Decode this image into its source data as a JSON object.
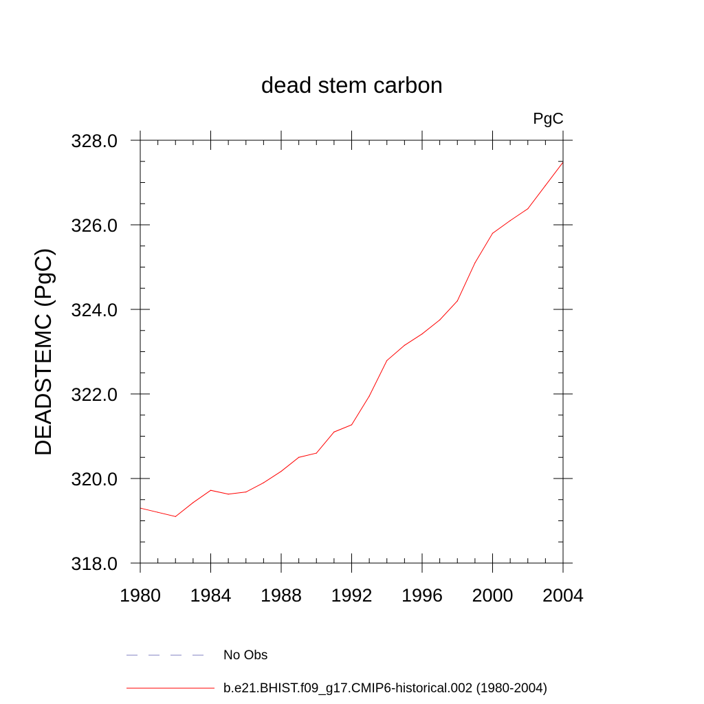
{
  "chart_data": {
    "type": "line",
    "title": "dead stem carbon",
    "units": "PgC",
    "ylabel": "DEADSTEMC  (PgC)",
    "xlabel": "",
    "xlim": [
      1980,
      2004
    ],
    "ylim": [
      318.0,
      328.0
    ],
    "x_ticks": [
      1980,
      1984,
      1988,
      1992,
      1996,
      2000,
      2004
    ],
    "x_tick_labels": [
      "1980",
      "1984",
      "1988",
      "1992",
      "1996",
      "2000",
      "2004"
    ],
    "y_ticks": [
      318.0,
      320.0,
      322.0,
      324.0,
      326.0,
      328.0
    ],
    "y_tick_labels": [
      "318.0",
      "320.0",
      "322.0",
      "324.0",
      "326.0",
      "328.0"
    ],
    "series": [
      {
        "name": "b.e21.BHIST.f09_g17.CMIP6-historical.002 (1980-2004)",
        "color": "#ff0000",
        "style": "solid",
        "x": [
          1980,
          1981,
          1982,
          1983,
          1984,
          1985,
          1986,
          1987,
          1988,
          1989,
          1990,
          1991,
          1992,
          1993,
          1994,
          1995,
          1996,
          1997,
          1998,
          1999,
          2000,
          2001,
          2002,
          2003,
          2004
        ],
        "values": [
          319.3,
          319.2,
          319.1,
          319.43,
          319.72,
          319.63,
          319.68,
          319.9,
          320.17,
          320.5,
          320.6,
          321.1,
          321.27,
          321.95,
          322.79,
          323.15,
          323.42,
          323.75,
          324.2,
          325.1,
          325.8,
          326.1,
          326.38,
          326.93,
          327.48
        ]
      }
    ],
    "legend": {
      "placement": "bottom",
      "entries": [
        {
          "label": "No Obs",
          "color": "#8080c0",
          "style": "dashed"
        },
        {
          "label": "b.e21.BHIST.f09_g17.CMIP6-historical.002 (1980-2004)",
          "color": "#ff0000",
          "style": "solid"
        }
      ]
    }
  }
}
